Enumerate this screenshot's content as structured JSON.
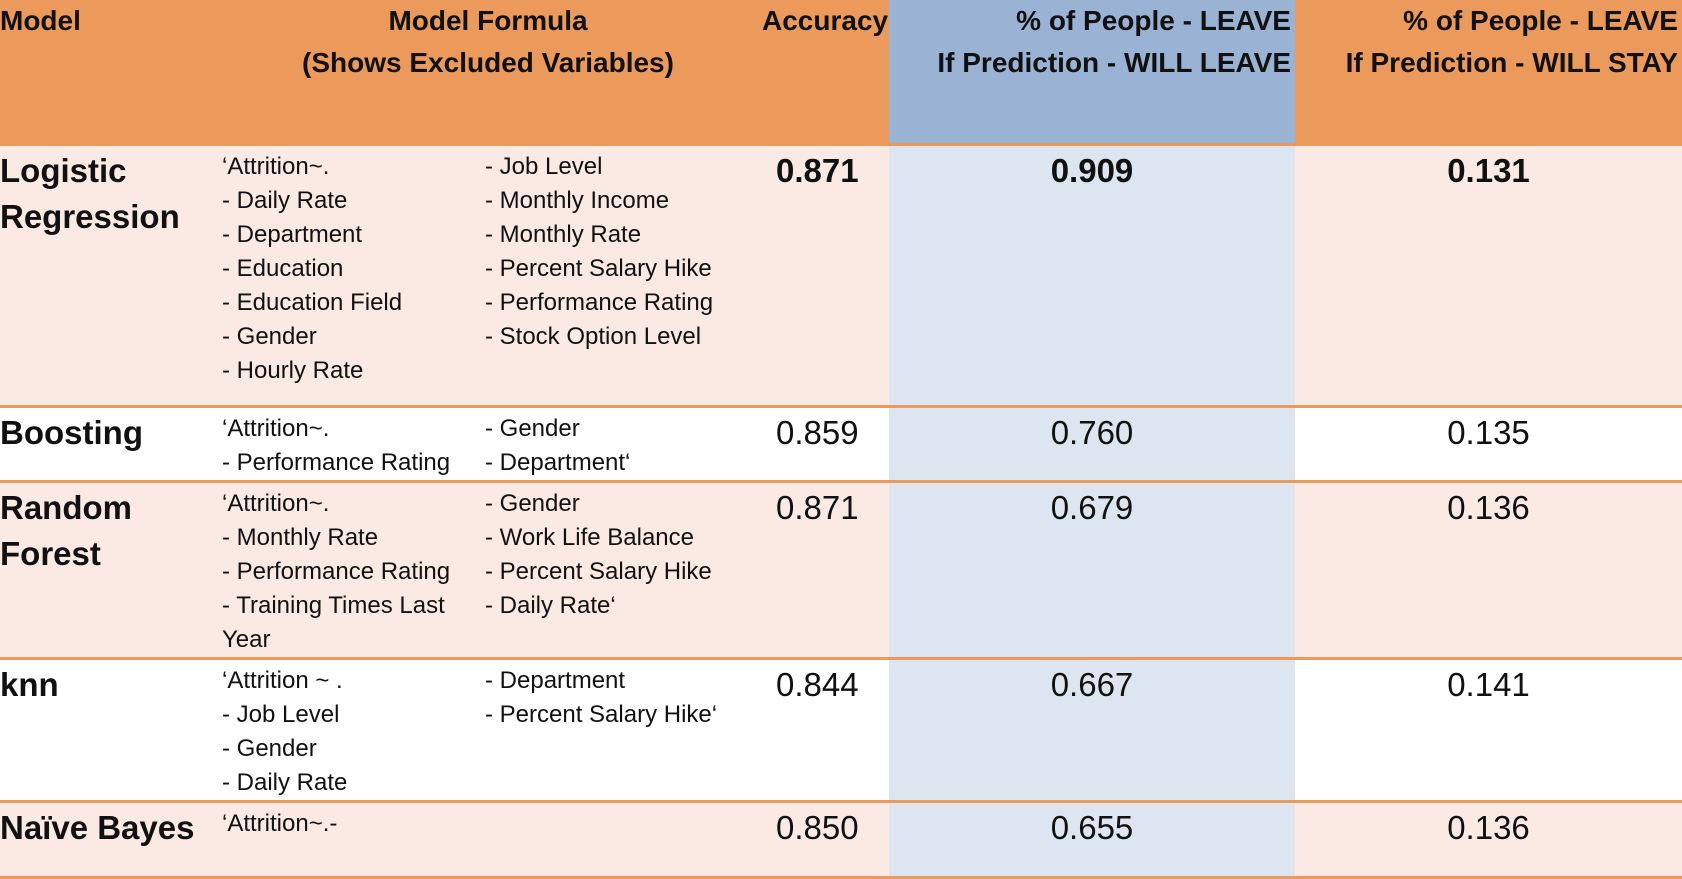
{
  "header": {
    "model": "Model",
    "formula_line1": "Model Formula",
    "formula_line2": "(Shows Excluded Variables)",
    "accuracy": "Accuracy",
    "leave_line1": "% of People - LEAVE",
    "leave_line2": "If Prediction - WILL LEAVE",
    "stay_line1": "% of People - LEAVE",
    "stay_line2": "If Prediction - WILL STAY"
  },
  "rows": [
    {
      "name_line1": "Logistic",
      "name_line2": "Regression",
      "formula_col1": [
        "‘Attrition~.",
        "- Daily Rate",
        "- Department",
        "- Education",
        "- Education Field",
        "- Gender",
        "- Hourly Rate"
      ],
      "formula_col2": [
        "- Job Level",
        "- Monthly Income",
        "- Monthly Rate",
        "- Percent Salary Hike",
        "- Performance Rating",
        "- Stock Option Level"
      ],
      "accuracy": "0.871",
      "leave_if_leave": "0.909",
      "leave_if_stay": "0.131"
    },
    {
      "name_line1": "Boosting",
      "formula_col1": [
        "‘Attrition~.",
        "- Performance Rating"
      ],
      "formula_col2": [
        "- Gender",
        "- Department‘"
      ],
      "accuracy": "0.859",
      "leave_if_leave": "0.760",
      "leave_if_stay": "0.135"
    },
    {
      "name_line1": "Random",
      "name_line2": "Forest",
      "formula_col1": [
        "‘Attrition~.",
        "- Monthly Rate",
        "- Performance Rating",
        "- Training Times Last Year"
      ],
      "formula_col2": [
        "- Gender",
        "- Work Life Balance",
        "- Percent Salary Hike",
        "- Daily Rate‘"
      ],
      "accuracy": "0.871",
      "leave_if_leave": "0.679",
      "leave_if_stay": "0.136"
    },
    {
      "name_line1": "knn",
      "formula_col1": [
        "‘Attrition ~ .",
        "- Job Level",
        "- Gender",
        "- Daily Rate"
      ],
      "formula_col2": [
        "- Department",
        "- Percent Salary Hike‘"
      ],
      "accuracy": "0.844",
      "leave_if_leave": "0.667",
      "leave_if_stay": "0.141"
    },
    {
      "name_line1": "Naïve Bayes",
      "formula_col1": [
        "‘Attrition~.-"
      ],
      "formula_col2": [],
      "accuracy": "0.850",
      "leave_if_leave": "0.655",
      "leave_if_stay": "0.136"
    }
  ],
  "colors": {
    "header_orange": "#ec9a5c",
    "header_blue": "#9ab3d5",
    "row_pink": "#fbe9e4",
    "column_blue": "#dce5f0",
    "border_orange": "#ec9a5c"
  }
}
